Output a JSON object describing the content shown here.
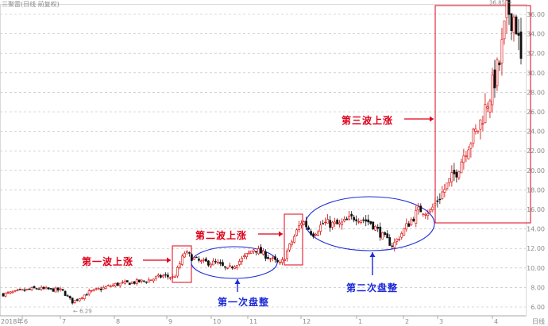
{
  "chart_title": "三聚雷(日线 前复权)",
  "x_unit_label": "日线",
  "chart_data": {
    "type": "candlestick",
    "y_axis": {
      "ticks": [
        "6.00",
        "8.00",
        "10.00",
        "12.00",
        "14.00",
        "16.00",
        "18.00",
        "20.00",
        "22.00",
        "24.00",
        "26.00",
        "28.00",
        "30.00",
        "32.00",
        "34.00",
        "36.00"
      ],
      "range": [
        5.2,
        37.6
      ],
      "position": "right",
      "grid": "dashed horizontal"
    },
    "x_axis": {
      "ticks": [
        "2018年",
        "6",
        "7",
        "8",
        "9",
        "10",
        "11",
        "12",
        "1",
        "2",
        "3",
        "4"
      ]
    },
    "price_labels": [
      {
        "text": "6.29",
        "value": 6.29
      },
      {
        "text": "36.85",
        "value": 36.85
      }
    ],
    "annotations": [
      {
        "text": "第一波上涨",
        "color": "#e0001a"
      },
      {
        "text": "第二波上涨",
        "color": "#e0001a"
      },
      {
        "text": "第三波上涨",
        "color": "#e0001a"
      },
      {
        "text": "第一次盘整",
        "color": "#1d2bd6"
      },
      {
        "text": "第二次盘整",
        "color": "#1d2bd6"
      }
    ],
    "waypoints": [
      {
        "t": 0,
        "v": 7.3
      },
      {
        "t": 0.06,
        "v": 7.9
      },
      {
        "t": 0.11,
        "v": 7.7
      },
      {
        "t": 0.13,
        "v": 6.5
      },
      {
        "t": 0.16,
        "v": 7.5
      },
      {
        "t": 0.21,
        "v": 8.3
      },
      {
        "t": 0.27,
        "v": 8.7
      },
      {
        "t": 0.3,
        "v": 9.2
      },
      {
        "t": 0.32,
        "v": 9.0
      },
      {
        "t": 0.34,
        "v": 11.6
      },
      {
        "t": 0.355,
        "v": 11.0
      },
      {
        "t": 0.37,
        "v": 10.6
      },
      {
        "t": 0.4,
        "v": 10.5
      },
      {
        "t": 0.42,
        "v": 9.8
      },
      {
        "t": 0.45,
        "v": 11.0
      },
      {
        "t": 0.47,
        "v": 12.0
      },
      {
        "t": 0.5,
        "v": 11.0
      },
      {
        "t": 0.52,
        "v": 10.3
      },
      {
        "t": 0.54,
        "v": 12.6
      },
      {
        "t": 0.56,
        "v": 14.9
      },
      {
        "t": 0.58,
        "v": 13.5
      },
      {
        "t": 0.6,
        "v": 14.6
      },
      {
        "t": 0.63,
        "v": 14.4
      },
      {
        "t": 0.66,
        "v": 15.3
      },
      {
        "t": 0.69,
        "v": 14.6
      },
      {
        "t": 0.71,
        "v": 13.3
      },
      {
        "t": 0.73,
        "v": 12.3
      },
      {
        "t": 0.76,
        "v": 14.6
      },
      {
        "t": 0.78,
        "v": 16.0
      },
      {
        "t": 0.8,
        "v": 15.8
      },
      {
        "t": 0.82,
        "v": 17.5
      },
      {
        "t": 0.85,
        "v": 20.0
      },
      {
        "t": 0.87,
        "v": 22.6
      },
      {
        "t": 0.89,
        "v": 24.3
      },
      {
        "t": 0.91,
        "v": 27.5
      },
      {
        "t": 0.93,
        "v": 31.0
      },
      {
        "t": 0.945,
        "v": 36.5
      },
      {
        "t": 0.96,
        "v": 35.5
      },
      {
        "t": 0.97,
        "v": 31.0
      }
    ]
  }
}
